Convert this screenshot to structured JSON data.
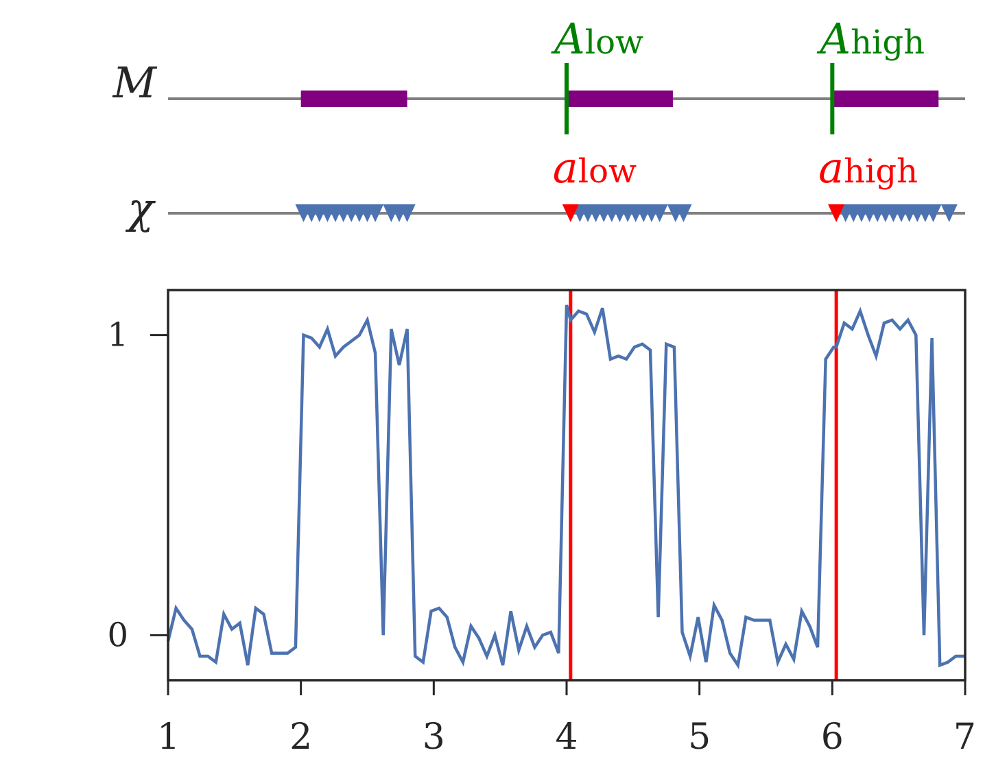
{
  "chart_data": {
    "type": "line",
    "title": "",
    "xlabel": "",
    "ylabel": "",
    "xlim": [
      1,
      7
    ],
    "ylim": [
      -0.15,
      1.15
    ],
    "xticks": [
      1,
      2,
      3,
      4,
      5,
      6,
      7
    ],
    "yticks": [
      0,
      1
    ],
    "grid": false,
    "legend": "none",
    "colors": {
      "signal": "#4c72b0",
      "intervals": "#800080",
      "boundaries_A": "#008000",
      "boundaries_a": "#ff0000",
      "axis_line": "#808080",
      "frame": "#262626"
    },
    "rows": {
      "M": {
        "label": "M",
        "intervals": [
          [
            2.0,
            2.8
          ],
          [
            4.0,
            4.8
          ],
          [
            6.0,
            6.8
          ]
        ],
        "markers": [
          {
            "x": 4.0,
            "label_main": "A",
            "label_sub": "low"
          },
          {
            "x": 6.0,
            "label_main": "A",
            "label_sub": "high"
          }
        ]
      },
      "chi": {
        "label": "χ",
        "points": [
          2.02,
          2.08,
          2.14,
          2.2,
          2.26,
          2.32,
          2.38,
          2.44,
          2.5,
          2.56,
          2.68,
          2.74,
          2.8,
          4.1,
          4.16,
          4.22,
          4.28,
          4.34,
          4.4,
          4.46,
          4.52,
          4.58,
          4.64,
          4.7,
          4.82,
          4.88,
          6.1,
          6.16,
          6.22,
          6.28,
          6.34,
          6.4,
          6.46,
          6.52,
          6.58,
          6.64,
          6.7,
          6.76,
          6.88
        ],
        "highlighted_points": [
          4.03,
          6.03
        ],
        "markers": [
          {
            "x": 4.03,
            "label_main": "a",
            "label_sub": "low"
          },
          {
            "x": 6.03,
            "label_main": "a",
            "label_sub": "high"
          }
        ]
      }
    },
    "vlines": [
      4.03,
      6.03
    ],
    "series": [
      {
        "x": [
          1.0,
          1.06,
          1.12,
          1.18,
          1.24,
          1.3,
          1.36,
          1.42,
          1.48,
          1.54,
          1.6,
          1.66,
          1.72,
          1.78,
          1.84,
          1.9,
          1.96,
          2.02,
          2.08,
          2.14,
          2.2,
          2.26,
          2.32,
          2.38,
          2.44,
          2.5,
          2.56,
          2.62,
          2.68,
          2.74,
          2.8,
          2.86,
          2.92,
          2.98,
          3.04,
          3.1,
          3.16,
          3.22,
          3.28,
          3.34,
          3.4,
          3.46,
          3.52,
          3.58,
          3.64,
          3.7,
          3.76,
          3.82,
          3.88,
          3.94,
          4.0,
          4.03,
          4.09,
          4.15,
          4.21,
          4.27,
          4.33,
          4.39,
          4.45,
          4.51,
          4.57,
          4.63,
          4.69,
          4.75,
          4.81,
          4.87,
          4.93,
          4.99,
          5.05,
          5.11,
          5.17,
          5.23,
          5.29,
          5.35,
          5.41,
          5.47,
          5.53,
          5.59,
          5.65,
          5.71,
          5.77,
          5.83,
          5.89,
          5.95,
          6.01,
          6.03,
          6.09,
          6.15,
          6.21,
          6.27,
          6.33,
          6.39,
          6.45,
          6.51,
          6.57,
          6.63,
          6.69,
          6.75,
          6.81,
          6.87,
          6.93,
          7.0
        ],
        "values": [
          -0.02,
          0.09,
          0.05,
          0.02,
          -0.07,
          -0.07,
          -0.09,
          0.07,
          0.02,
          0.04,
          -0.1,
          0.09,
          0.07,
          -0.06,
          -0.06,
          -0.06,
          -0.04,
          1.0,
          0.99,
          0.96,
          1.02,
          0.93,
          0.96,
          0.98,
          1.0,
          1.05,
          0.94,
          0.0,
          1.02,
          0.9,
          1.02,
          -0.07,
          -0.09,
          0.08,
          0.09,
          0.06,
          -0.04,
          -0.09,
          0.03,
          -0.01,
          -0.07,
          0.0,
          -0.1,
          0.08,
          -0.05,
          0.03,
          -0.04,
          0.0,
          0.01,
          -0.06,
          1.1,
          1.05,
          1.08,
          1.07,
          1.01,
          1.09,
          0.92,
          0.93,
          0.92,
          0.96,
          0.97,
          0.95,
          0.06,
          0.97,
          0.96,
          0.01,
          -0.07,
          0.06,
          -0.09,
          0.1,
          0.05,
          -0.06,
          -0.1,
          0.06,
          0.05,
          0.05,
          0.05,
          -0.09,
          -0.03,
          -0.08,
          0.08,
          0.03,
          -0.04,
          0.92,
          0.96,
          0.96,
          1.04,
          1.02,
          1.08,
          1.0,
          0.93,
          1.04,
          1.05,
          1.02,
          1.05,
          1.0,
          0.0,
          0.99,
          -0.1,
          -0.09,
          -0.07,
          -0.07
        ]
      }
    ]
  }
}
